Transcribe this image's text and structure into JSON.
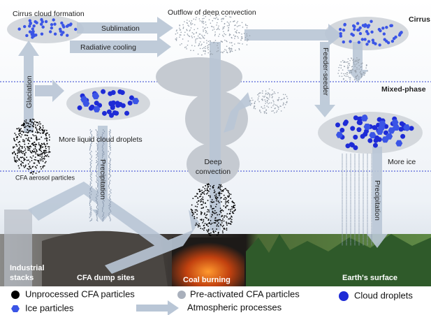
{
  "labels": {
    "cirrus_formation": "Cirrus cloud formation",
    "outflow": "Outflow of deep convection",
    "cirrus": "Cirrus",
    "sublimation": "Sublimation",
    "radiative_cooling": "Radiative cooling",
    "mixed_phase": "Mixed-phase",
    "glaciation": "Glaciation",
    "feeder_seeder": "Feeder-seeder",
    "more_liquid": "More liquid cloud droplets",
    "precipitation_left": "Precipitation",
    "cfa_aerosol": "CFA aerosol particles",
    "deep_convection": [
      "Deep",
      "convection"
    ],
    "more_ice": "More ice",
    "precipitation_right": "Precipitation",
    "industrial_stacks": [
      "Industrial",
      "stacks"
    ],
    "dump_sites": "CFA dump sites",
    "coal_burning": "Coal burning",
    "earth_surface": "Earth's surface"
  },
  "legend": [
    "Unprocessed CFA particles",
    "Pre-activated CFA particles",
    "Cloud droplets",
    "Ice particles",
    "Atmospheric processes"
  ]
}
